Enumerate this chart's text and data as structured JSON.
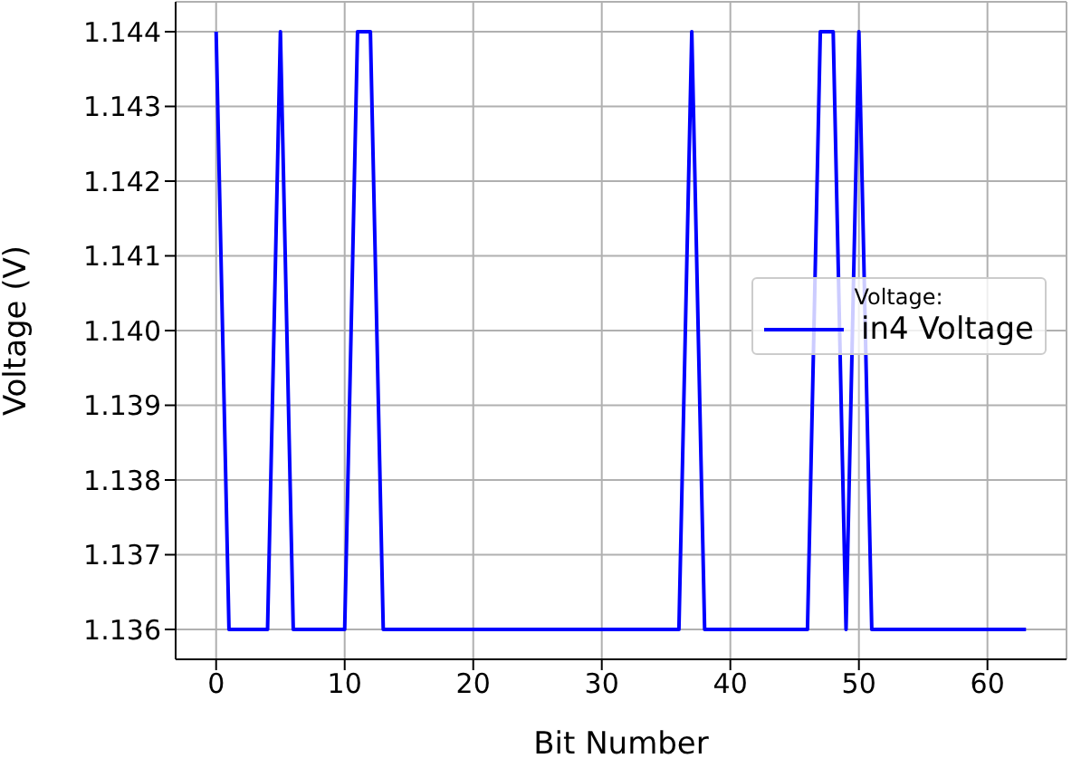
{
  "chart_data": {
    "type": "line",
    "xlabel": "Bit Number",
    "ylabel": "Voltage (V)",
    "legend_title": "Voltage:",
    "x": [
      0,
      1,
      2,
      3,
      4,
      5,
      6,
      7,
      8,
      9,
      10,
      11,
      12,
      13,
      14,
      15,
      16,
      17,
      18,
      19,
      20,
      21,
      22,
      23,
      24,
      25,
      26,
      27,
      28,
      29,
      30,
      31,
      32,
      33,
      34,
      35,
      36,
      37,
      38,
      39,
      40,
      41,
      42,
      43,
      44,
      45,
      46,
      47,
      48,
      49,
      50,
      51,
      52,
      53,
      54,
      55,
      56,
      57,
      58,
      59,
      60,
      61,
      62,
      63
    ],
    "series": [
      {
        "name": "in4 Voltage",
        "color": "#0000ff",
        "values": [
          1.144,
          1.136,
          1.136,
          1.136,
          1.136,
          1.144,
          1.136,
          1.136,
          1.136,
          1.136,
          1.136,
          1.144,
          1.144,
          1.136,
          1.136,
          1.136,
          1.136,
          1.136,
          1.136,
          1.136,
          1.136,
          1.136,
          1.136,
          1.136,
          1.136,
          1.136,
          1.136,
          1.136,
          1.136,
          1.136,
          1.136,
          1.136,
          1.136,
          1.136,
          1.136,
          1.136,
          1.136,
          1.144,
          1.136,
          1.136,
          1.136,
          1.136,
          1.136,
          1.136,
          1.136,
          1.136,
          1.136,
          1.144,
          1.144,
          1.136,
          1.144,
          1.136,
          1.136,
          1.136,
          1.136,
          1.136,
          1.136,
          1.136,
          1.136,
          1.136,
          1.136,
          1.136,
          1.136,
          1.136
        ]
      }
    ],
    "xlim": [
      -3.15,
      66.15
    ],
    "xticks": [
      0,
      10,
      20,
      30,
      40,
      50,
      60
    ],
    "ylim": [
      1.1356,
      1.1444
    ],
    "yticks": [
      1.136,
      1.137,
      1.138,
      1.139,
      {
        "value": 1.14,
        "label": "1.140"
      },
      1.141,
      1.142,
      1.143,
      1.144
    ],
    "grid": true,
    "legend": "center right",
    "marker": "none",
    "line_style": "solid"
  }
}
